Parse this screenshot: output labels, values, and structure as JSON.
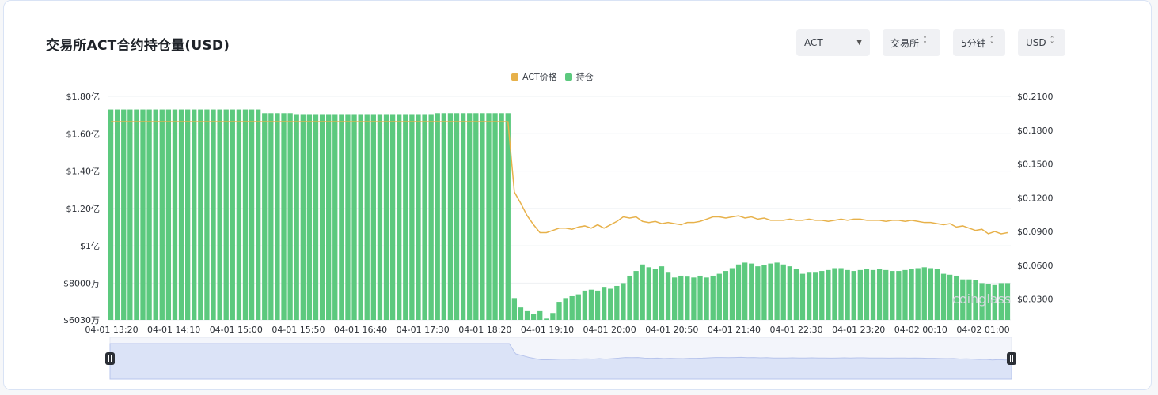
{
  "title": "交易所ACT合约持仓量(USD)",
  "controls": {
    "coin": "ACT",
    "exchange": "交易所",
    "interval": "5分钟",
    "unit": "USD"
  },
  "legend": {
    "price_label": "ACT价格",
    "oi_label": "持仓"
  },
  "colors": {
    "price": "#e7b14a",
    "oi": "#5cc97e",
    "navigator_fill": "#dbe3f7",
    "navigator_line": "#b7c4ec"
  },
  "watermark": "coinglass",
  "chart_data": {
    "type": "bar+line",
    "x_tick_labels": [
      "04-01 13:20",
      "04-01 14:10",
      "04-01 15:00",
      "04-01 15:50",
      "04-01 16:40",
      "04-01 17:30",
      "04-01 18:20",
      "04-01 19:10",
      "04-01 20:00",
      "04-01 20:50",
      "04-01 21:40",
      "04-01 22:30",
      "04-01 23:20",
      "04-02 00:10",
      "04-02 01:00"
    ],
    "y_left": {
      "tick_labels": [
        "$6030万",
        "$8000万",
        "$1亿",
        "$1.20亿",
        "$1.40亿",
        "$1.60亿",
        "$1.80亿"
      ],
      "tick_values": [
        60300000,
        80000000,
        100000000,
        120000000,
        140000000,
        160000000,
        180000000
      ],
      "range": [
        60300000,
        180000000
      ]
    },
    "y_right": {
      "tick_labels": [
        "$0.0300",
        "$0.0600",
        "$0.0900",
        "$0.1200",
        "$0.1500",
        "$0.1800",
        "$0.2100"
      ],
      "tick_values": [
        0.03,
        0.06,
        0.09,
        0.12,
        0.15,
        0.18,
        0.21
      ],
      "range": [
        0.0115,
        0.21
      ]
    },
    "open_interest_usd": [
      173000000,
      173000000,
      173000000,
      173000000,
      173000000,
      173000000,
      173000000,
      173000000,
      173000000,
      173000000,
      173000000,
      173000000,
      173000000,
      173000000,
      173000000,
      173000000,
      173000000,
      173000000,
      173000000,
      173000000,
      173000000,
      173000000,
      173000000,
      173000000,
      171000000,
      171000000,
      171000000,
      171000000,
      171000000,
      170500000,
      170500000,
      170500000,
      170500000,
      170500000,
      170500000,
      170500000,
      170500000,
      170500000,
      170500000,
      170500000,
      170500000,
      170500000,
      170500000,
      170500000,
      170500000,
      170500000,
      170500000,
      170500000,
      170500000,
      170500000,
      170500000,
      171000000,
      171000000,
      171000000,
      171000000,
      171000000,
      171000000,
      171000000,
      171000000,
      171000000,
      171000000,
      171000000,
      171000000,
      72000000,
      67000000,
      65000000,
      63500000,
      65000000,
      61000000,
      64000000,
      70000000,
      72000000,
      73000000,
      74000000,
      76000000,
      76500000,
      76000000,
      78000000,
      77000000,
      78500000,
      80000000,
      84000000,
      86500000,
      90000000,
      88500000,
      87500000,
      89000000,
      86000000,
      83000000,
      84000000,
      83500000,
      83000000,
      84000000,
      83000000,
      84000000,
      85000000,
      86500000,
      88000000,
      90000000,
      91000000,
      90500000,
      89000000,
      89500000,
      90500000,
      91000000,
      90000000,
      89000000,
      87500000,
      85000000,
      86000000,
      86000000,
      86500000,
      87000000,
      88000000,
      88000000,
      87000000,
      86500000,
      87000000,
      87500000,
      87000000,
      87500000,
      87000000,
      86500000,
      86500000,
      87000000,
      87500000,
      88000000,
      88500000,
      88000000,
      87500000,
      85000000,
      84500000,
      84000000,
      82000000,
      82000000,
      81500000,
      80000000,
      79500000,
      79000000,
      80000000,
      80000000
    ],
    "price_usd": [
      0.1875,
      0.1875,
      0.1875,
      0.1875,
      0.1875,
      0.1875,
      0.1875,
      0.1875,
      0.1875,
      0.1875,
      0.1875,
      0.1875,
      0.1875,
      0.1875,
      0.1875,
      0.1875,
      0.1875,
      0.1875,
      0.1875,
      0.1875,
      0.1875,
      0.1875,
      0.1875,
      0.1875,
      0.1875,
      0.1875,
      0.1875,
      0.1875,
      0.1875,
      0.1875,
      0.1875,
      0.1875,
      0.1875,
      0.1875,
      0.1875,
      0.1875,
      0.1875,
      0.1875,
      0.1875,
      0.1875,
      0.1875,
      0.1875,
      0.1875,
      0.1875,
      0.1875,
      0.1875,
      0.1875,
      0.1875,
      0.1875,
      0.1875,
      0.1875,
      0.1875,
      0.1875,
      0.1875,
      0.1875,
      0.1875,
      0.1875,
      0.1875,
      0.1875,
      0.1875,
      0.1875,
      0.1875,
      0.1875,
      0.125,
      0.115,
      0.104,
      0.096,
      0.089,
      0.089,
      0.091,
      0.093,
      0.093,
      0.092,
      0.094,
      0.095,
      0.093,
      0.096,
      0.093,
      0.096,
      0.099,
      0.103,
      0.102,
      0.103,
      0.099,
      0.098,
      0.099,
      0.097,
      0.098,
      0.097,
      0.096,
      0.098,
      0.098,
      0.099,
      0.101,
      0.103,
      0.103,
      0.102,
      0.103,
      0.104,
      0.102,
      0.103,
      0.101,
      0.102,
      0.1,
      0.1,
      0.1,
      0.101,
      0.1,
      0.1,
      0.101,
      0.1,
      0.1,
      0.099,
      0.1,
      0.101,
      0.1,
      0.101,
      0.101,
      0.1,
      0.1,
      0.1,
      0.099,
      0.1,
      0.1,
      0.099,
      0.1,
      0.099,
      0.098,
      0.098,
      0.097,
      0.096,
      0.097,
      0.094,
      0.095,
      0.093,
      0.091,
      0.092,
      0.088,
      0.09,
      0.088,
      0.089
    ],
    "grid": true,
    "legend_position": "top-center"
  }
}
